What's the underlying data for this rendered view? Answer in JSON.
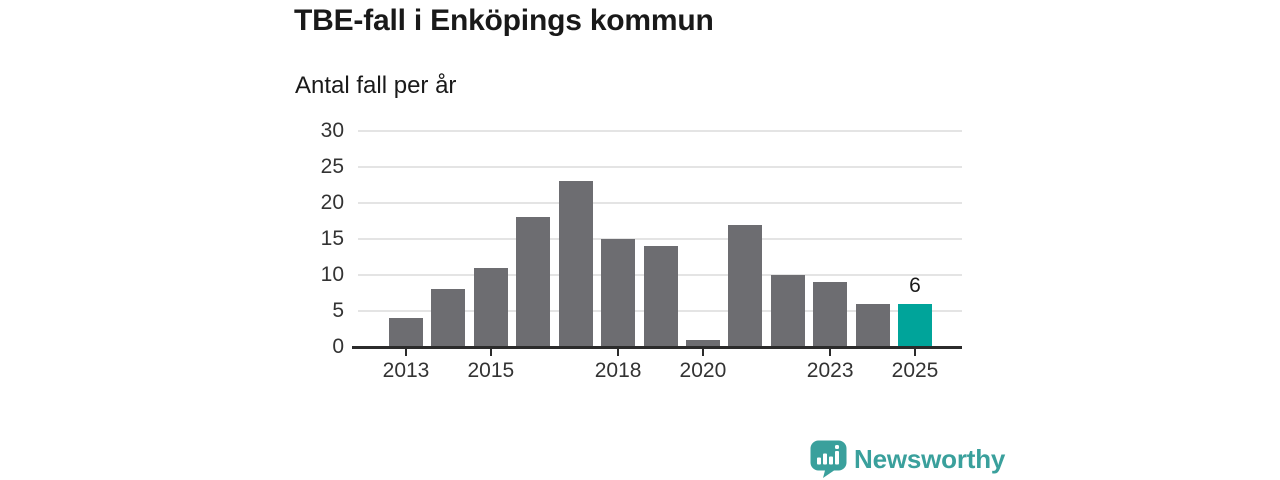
{
  "header": {
    "title": "TBE-fall i Enköpings kommun",
    "subtitle": "Antal fall per år"
  },
  "chart_data": {
    "type": "bar",
    "title": "TBE-fall i Enköpings kommun",
    "ylabel": "Antal fall per år",
    "categories": [
      2013,
      2014,
      2015,
      2016,
      2017,
      2018,
      2019,
      2020,
      2021,
      2022,
      2023,
      2024,
      2025
    ],
    "values": [
      4,
      8,
      11,
      18,
      23,
      15,
      14,
      1,
      17,
      10,
      9,
      6,
      6
    ],
    "ylim": [
      0,
      30
    ],
    "yticks": [
      0,
      5,
      10,
      15,
      20,
      25,
      30
    ],
    "xtick_labels": [
      2013,
      2015,
      2018,
      2020,
      2023,
      2025
    ],
    "grid": "horizontal",
    "legend": "none",
    "highlight": {
      "category": 2025,
      "value": 6,
      "label": "6"
    },
    "colors": {
      "bar": "#6d6d71",
      "highlight": "#00a49a",
      "grid": "#e4e4e4",
      "axis": "#2b2b2b",
      "tick_text": "#333333",
      "value_label": "#1a1a1a"
    }
  },
  "branding": {
    "logo_text": "Newsworthy",
    "logo_color": "#3aa09c",
    "logo_icon": "bar-chart-speech-bubble"
  }
}
